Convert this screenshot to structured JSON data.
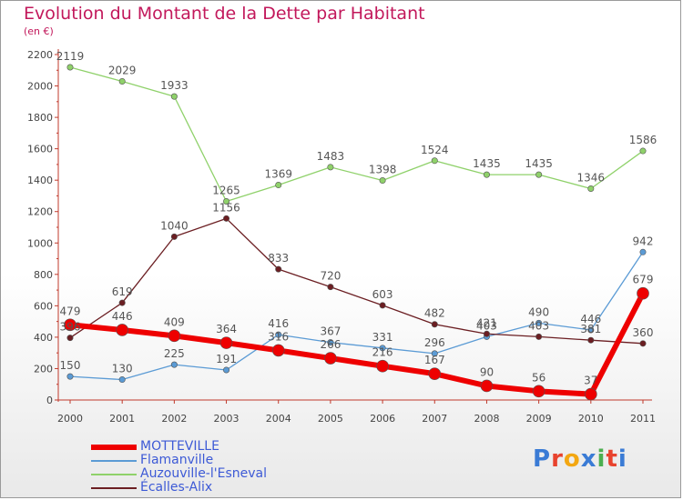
{
  "title": "Evolution du Montant de la Dette par Habitant",
  "subtitle": "(en €)",
  "logo": {
    "text": "Proxiti",
    "colors": [
      "#3a7bd5",
      "#e8432e",
      "#f3a712",
      "#3a7bd5",
      "#4caf50",
      "#e8432e",
      "#3a7bd5"
    ]
  },
  "chart_data": {
    "type": "line",
    "x": [
      "2000",
      "2001",
      "2002",
      "2003",
      "2004",
      "2005",
      "2006",
      "2007",
      "2008",
      "2009",
      "2010",
      "2011"
    ],
    "ylim": [
      0,
      2200
    ],
    "yticks": [
      0,
      200,
      400,
      600,
      800,
      1000,
      1200,
      1400,
      1600,
      1800,
      2000,
      2200
    ],
    "grid": false,
    "legend_position": "bottom-left",
    "series": [
      {
        "name": "Flamanville",
        "color": "#5b9bd5",
        "width": 1.3,
        "marker": 3.2,
        "values": [
          150,
          130,
          225,
          191,
          416,
          367,
          331,
          296,
          403,
          490,
          446,
          942
        ]
      },
      {
        "name": "Auzouville-l'Esneval",
        "color": "#8fd16a",
        "width": 1.3,
        "marker": 3.2,
        "values": [
          2119,
          2029,
          1933,
          1265,
          1369,
          1483,
          1398,
          1524,
          1435,
          1435,
          1346,
          1586
        ]
      },
      {
        "name": "Écalles-Alix",
        "color": "#6b1e22",
        "width": 1.3,
        "marker": 3.2,
        "values": [
          396,
          619,
          1040,
          1156,
          833,
          720,
          603,
          482,
          421,
          403,
          381,
          360
        ]
      },
      {
        "name": "MOTTEVILLE",
        "color": "#ee0000",
        "width": 6,
        "marker": 6.5,
        "values": [
          479,
          446,
          409,
          364,
          316,
          266,
          216,
          167,
          90,
          56,
          37,
          679
        ]
      }
    ]
  }
}
